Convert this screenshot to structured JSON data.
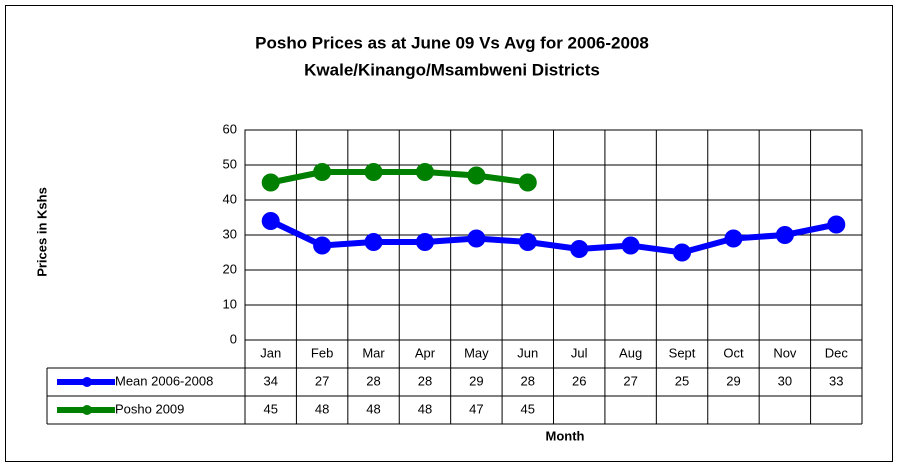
{
  "chart_data": {
    "type": "line",
    "title": "Posho Prices as at June 09 Vs Avg for 2006-2008",
    "subtitle": "Kwale/Kinango/Msambweni Districts",
    "x_label": "Month",
    "y_label": "Prices in Kshs",
    "categories": [
      "Jan",
      "Feb",
      "Mar",
      "Apr",
      "May",
      "Jun",
      "Jul",
      "Aug",
      "Sept",
      "Oct",
      "Nov",
      "Dec"
    ],
    "series": [
      {
        "name": "Mean 2006-2008",
        "color": "#0000ff",
        "values": [
          34,
          27,
          28,
          28,
          29,
          28,
          26,
          27,
          25,
          29,
          30,
          33
        ]
      },
      {
        "name": "Posho 2009",
        "color": "#008000",
        "values": [
          45,
          48,
          48,
          48,
          47,
          45,
          null,
          null,
          null,
          null,
          null,
          null
        ]
      }
    ],
    "ylim": [
      0,
      60
    ],
    "yticks": [
      0,
      10,
      20,
      30,
      40,
      50,
      60
    ],
    "grid": true,
    "data_table": true
  }
}
